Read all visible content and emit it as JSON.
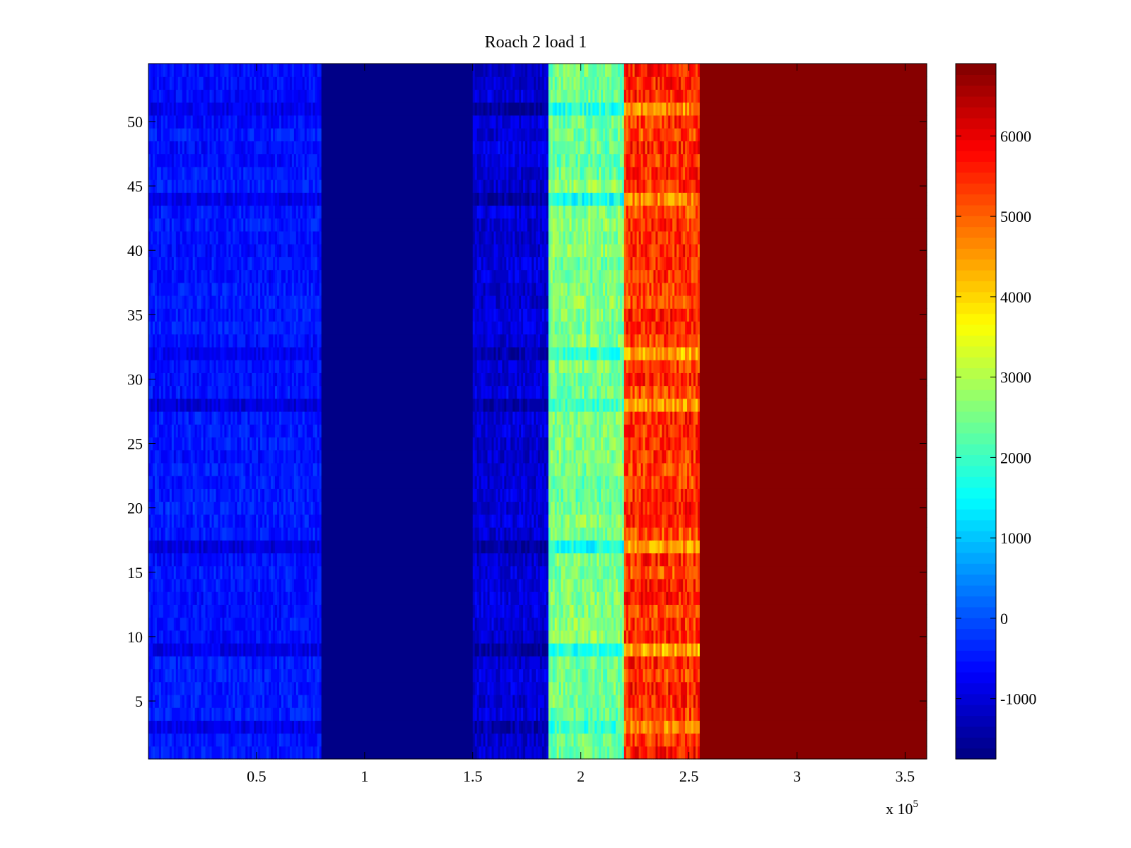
{
  "chart_data": {
    "type": "heatmap",
    "title": "Roach 2 load 1",
    "xlabel": "",
    "ylabel": "",
    "x_multiplier_label": "x 10",
    "x_multiplier_exponent": "5",
    "xlim": [
      0,
      360000
    ],
    "ylim": [
      0.5,
      54.5
    ],
    "x_ticks": [
      0.5,
      1,
      1.5,
      2,
      2.5,
      3,
      3.5
    ],
    "x_tick_labels": [
      "0.5",
      "1",
      "1.5",
      "2",
      "2.5",
      "3",
      "3.5"
    ],
    "y_ticks": [
      5,
      10,
      15,
      20,
      25,
      30,
      35,
      40,
      45,
      50
    ],
    "y_tick_labels": [
      "5",
      "10",
      "15",
      "20",
      "25",
      "30",
      "35",
      "40",
      "45",
      "50"
    ],
    "rows": 54,
    "colorbar": {
      "colormap": "jet",
      "clim": [
        -1750,
        6900
      ],
      "ticks": [
        -1000,
        0,
        1000,
        2000,
        3000,
        4000,
        5000,
        6000
      ],
      "tick_labels": [
        "-1000",
        "0",
        "1000",
        "2000",
        "3000",
        "4000",
        "5000",
        "6000"
      ],
      "levels": 64
    },
    "bands": [
      {
        "x_range": [
          0,
          80000
        ],
        "mean": -500,
        "spread": 350
      },
      {
        "x_range": [
          80000,
          150000
        ],
        "mean": -1750,
        "spread": 0
      },
      {
        "x_range": [
          150000,
          185000
        ],
        "mean": -1000,
        "spread": 450
      },
      {
        "x_range": [
          185000,
          220000
        ],
        "mean": 2500,
        "spread": 650
      },
      {
        "x_range": [
          220000,
          255000
        ],
        "mean": 5400,
        "spread": 800
      },
      {
        "x_range": [
          255000,
          360000
        ],
        "mean": 6900,
        "spread": 0
      }
    ],
    "anomalous_rows": [
      3,
      9,
      17,
      28,
      32,
      44,
      51
    ]
  }
}
